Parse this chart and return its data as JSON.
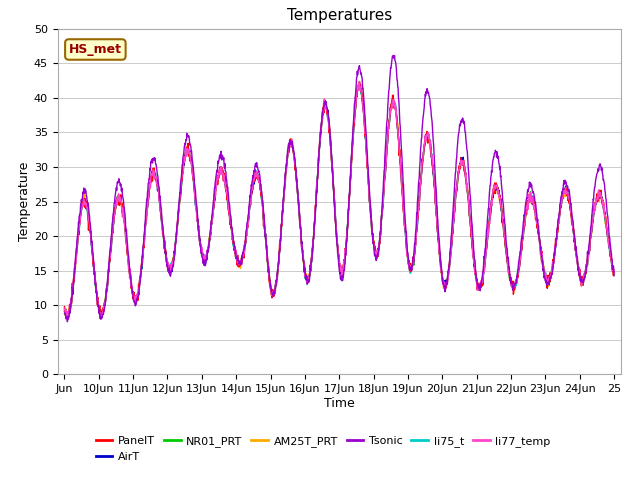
{
  "title": "Temperatures",
  "xlabel": "Time",
  "ylabel": "Temperature",
  "ylim": [
    0,
    50
  ],
  "yticks": [
    0,
    5,
    10,
    15,
    20,
    25,
    30,
    35,
    40,
    45,
    50
  ],
  "xtick_labels": [
    "Jun",
    "10Jun",
    "11Jun",
    "12Jun",
    "13Jun",
    "14Jun",
    "15Jun",
    "16Jun",
    "17Jun",
    "18Jun",
    "19Jun",
    "20Jun",
    "21Jun",
    "22Jun",
    "23Jun",
    "24Jun",
    "25"
  ],
  "plot_bg_color": "#ffffff",
  "fig_bg_color": "#ffffff",
  "legend_entries": [
    "PanelT",
    "AirT",
    "NR01_PRT",
    "AM25T_PRT",
    "Tsonic",
    "li75_t",
    "li77_temp"
  ],
  "legend_colors": [
    "#ff0000",
    "#0000cc",
    "#00cc00",
    "#ffaa00",
    "#9900cc",
    "#00cccc",
    "#ff44cc"
  ],
  "annotation_text": "HS_met",
  "grid_color": "#cccccc",
  "linewidth": 1.0,
  "title_fontsize": 11,
  "tick_fontsize": 8,
  "label_fontsize": 9,
  "legend_fontsize": 8
}
